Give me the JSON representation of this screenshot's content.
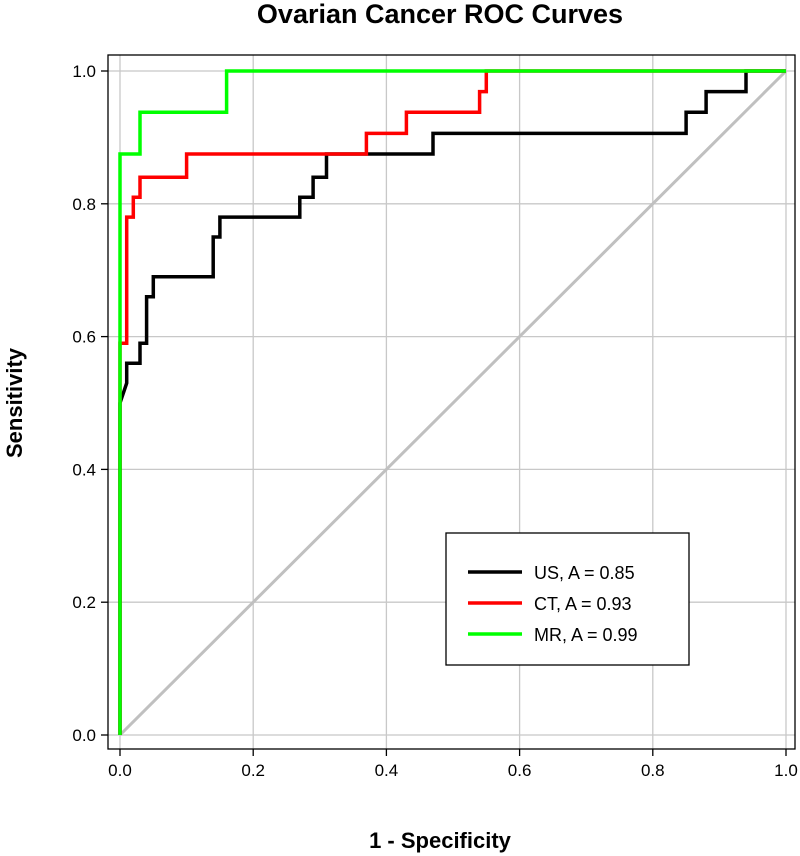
{
  "chart_data": {
    "type": "line",
    "title": "Ovarian Cancer ROC Curves",
    "xlabel": "1 - Specificity",
    "ylabel": "Sensitivity",
    "xlim": [
      0,
      1
    ],
    "ylim": [
      0,
      1
    ],
    "x_ticks": [
      0.0,
      0.2,
      0.4,
      0.6,
      0.8,
      1.0
    ],
    "y_ticks": [
      0.0,
      0.2,
      0.4,
      0.6,
      0.8,
      1.0
    ],
    "x_tick_labels": [
      "0.0",
      "0.2",
      "0.4",
      "0.6",
      "0.8",
      "1.0"
    ],
    "y_tick_labels": [
      "0.0",
      "0.2",
      "0.4",
      "0.6",
      "0.8",
      "1.0"
    ],
    "grid": true,
    "reference_line": {
      "x": [
        0,
        1
      ],
      "y": [
        0,
        1
      ],
      "color": "#c0c0c0"
    },
    "legend_position": "bottom-right",
    "series": [
      {
        "name": "US, A = 0.85",
        "color": "#000000",
        "x": [
          0,
          0,
          0.01,
          0.01,
          0.03,
          0.03,
          0.04,
          0.04,
          0.05,
          0.05,
          0.06,
          0.06,
          0.14,
          0.14,
          0.15,
          0.15,
          0.27,
          0.27,
          0.29,
          0.29,
          0.31,
          0.31,
          0.32,
          0.32,
          0.47,
          0.47,
          0.85,
          0.85,
          0.86,
          0.86,
          0.88,
          0.88,
          0.93,
          0.93,
          0.94,
          0.94,
          1.0
        ],
        "y": [
          0,
          0.5,
          0.53,
          0.56,
          0.56,
          0.59,
          0.59,
          0.66,
          0.66,
          0.69,
          0.69,
          0.69,
          0.69,
          0.75,
          0.75,
          0.78,
          0.78,
          0.81,
          0.81,
          0.84,
          0.84,
          0.875,
          0.875,
          0.875,
          0.875,
          0.906,
          0.906,
          0.938,
          0.938,
          0.938,
          0.938,
          0.969,
          0.969,
          0.969,
          0.969,
          1.0,
          1.0
        ]
      },
      {
        "name": "CT, A = 0.93",
        "color": "#ff0000",
        "x": [
          0,
          0,
          0.01,
          0.01,
          0.02,
          0.02,
          0.03,
          0.03,
          0.04,
          0.04,
          0.1,
          0.1,
          0.37,
          0.37,
          0.43,
          0.43,
          0.54,
          0.54,
          0.55,
          0.55,
          1.0
        ],
        "y": [
          0,
          0.59,
          0.59,
          0.78,
          0.78,
          0.81,
          0.81,
          0.84,
          0.84,
          0.84,
          0.84,
          0.875,
          0.875,
          0.906,
          0.906,
          0.938,
          0.938,
          0.969,
          0.969,
          1.0,
          1.0
        ]
      },
      {
        "name": "MR, A = 0.99",
        "color": "#00ff00",
        "x": [
          0,
          0,
          0.03,
          0.03,
          0.16,
          0.16,
          1.0
        ],
        "y": [
          0,
          0.875,
          0.875,
          0.938,
          0.938,
          1.0,
          1.0
        ]
      }
    ]
  }
}
